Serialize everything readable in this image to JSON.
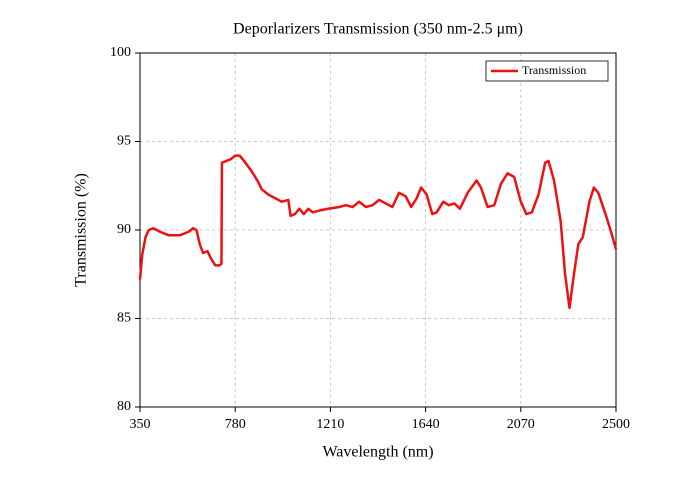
{
  "chart_data": {
    "type": "line",
    "title": "Deporlarizers Transmission (350 nm-2.5 μm)",
    "x_label": "Wavelength (nm)",
    "y_label": "Transmission (%)",
    "xlim": [
      350,
      2500
    ],
    "xticks": [
      350,
      780,
      1210,
      1640,
      2070,
      2500
    ],
    "ylim": [
      80,
      100
    ],
    "yticks": [
      80,
      85,
      90,
      95,
      100
    ],
    "grid": true,
    "legend": "upper right",
    "x": [
      350,
      360,
      375,
      390,
      410,
      440,
      480,
      530,
      570,
      590,
      605,
      620,
      635,
      655,
      670,
      690,
      710,
      718,
      720,
      740,
      760,
      780,
      800,
      820,
      850,
      880,
      900,
      930,
      960,
      990,
      1020,
      1030,
      1050,
      1070,
      1090,
      1110,
      1130,
      1160,
      1200,
      1250,
      1280,
      1310,
      1340,
      1370,
      1400,
      1430,
      1460,
      1490,
      1520,
      1550,
      1575,
      1600,
      1620,
      1645,
      1670,
      1690,
      1720,
      1745,
      1770,
      1795,
      1830,
      1870,
      1890,
      1920,
      1950,
      1980,
      2010,
      2040,
      2070,
      2095,
      2120,
      2150,
      2180,
      2195,
      2220,
      2250,
      2270,
      2290,
      2310,
      2330,
      2350,
      2380,
      2400,
      2420,
      2450,
      2480,
      2500
    ],
    "series": [
      {
        "name": "Transmission",
        "color": "#ee1111",
        "values": [
          87.2,
          88.6,
          89.6,
          90.0,
          90.1,
          89.9,
          89.7,
          89.7,
          89.9,
          90.1,
          90.0,
          89.2,
          88.7,
          88.8,
          88.4,
          88.0,
          88.0,
          88.1,
          93.8,
          93.9,
          94.0,
          94.2,
          94.2,
          93.9,
          93.4,
          92.8,
          92.3,
          92.0,
          91.8,
          91.6,
          91.7,
          90.8,
          90.9,
          91.2,
          90.9,
          91.2,
          91.0,
          91.1,
          91.2,
          91.3,
          91.4,
          91.3,
          91.6,
          91.3,
          91.4,
          91.7,
          91.5,
          91.3,
          92.1,
          91.9,
          91.3,
          91.8,
          92.4,
          92.0,
          90.9,
          91.0,
          91.6,
          91.4,
          91.5,
          91.2,
          92.1,
          92.8,
          92.4,
          91.3,
          91.4,
          92.6,
          93.2,
          93.0,
          91.6,
          90.9,
          91.0,
          92.0,
          93.8,
          93.9,
          92.8,
          90.5,
          87.5,
          85.6,
          87.5,
          89.2,
          89.6,
          91.6,
          92.4,
          92.1,
          91.0,
          89.8,
          88.9
        ]
      }
    ]
  }
}
